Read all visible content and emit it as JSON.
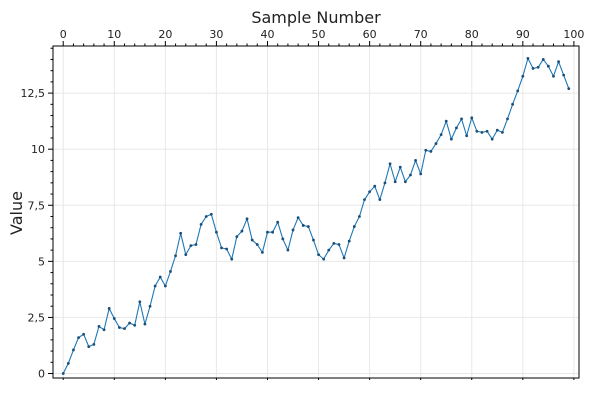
{
  "chart_data": {
    "type": "line",
    "xlabel": "Sample Number",
    "ylabel": "Value",
    "xlim": [
      -2,
      101
    ],
    "ylim": [
      -0.2,
      14.6
    ],
    "x_ticks": [
      0,
      10,
      20,
      30,
      40,
      50,
      60,
      70,
      80,
      90,
      100
    ],
    "x_tick_labels": [
      "0",
      "10",
      "20",
      "30",
      "40",
      "50",
      "60",
      "70",
      "80",
      "90",
      "100"
    ],
    "y_ticks": [
      0,
      2.5,
      5,
      7.5,
      10,
      12.5
    ],
    "y_tick_labels": [
      "0",
      "2,5",
      "5",
      "7,5",
      "10",
      "12,5"
    ],
    "x_axis_position": "top",
    "grid": true,
    "line_color": "#1f77b4",
    "series": [
      {
        "name": "",
        "x": [
          0,
          1,
          2,
          3,
          4,
          5,
          6,
          7,
          8,
          9,
          10,
          11,
          12,
          13,
          14,
          15,
          16,
          17,
          18,
          19,
          20,
          21,
          22,
          23,
          24,
          25,
          26,
          27,
          28,
          29,
          30,
          31,
          32,
          33,
          34,
          35,
          36,
          37,
          38,
          39,
          40,
          41,
          42,
          43,
          44,
          45,
          46,
          47,
          48,
          49,
          50,
          51,
          52,
          53,
          54,
          55,
          56,
          57,
          58,
          59,
          60,
          61,
          62,
          63,
          64,
          65,
          66,
          67,
          68,
          69,
          70,
          71,
          72,
          73,
          74,
          75,
          76,
          77,
          78,
          79,
          80,
          81,
          82,
          83,
          84,
          85,
          86,
          87,
          88,
          89,
          90,
          91,
          92,
          93,
          94,
          95,
          96,
          97,
          98,
          99
        ],
        "values": [
          0.0,
          0.45,
          1.05,
          1.6,
          1.75,
          1.2,
          1.3,
          2.1,
          1.95,
          2.9,
          2.45,
          2.05,
          2.0,
          2.25,
          2.15,
          3.2,
          2.2,
          3.0,
          3.9,
          4.3,
          3.9,
          4.55,
          5.25,
          6.25,
          5.3,
          5.7,
          5.75,
          6.65,
          7.0,
          7.1,
          6.3,
          5.6,
          5.55,
          5.1,
          6.1,
          6.35,
          6.9,
          5.95,
          5.75,
          5.4,
          6.3,
          6.3,
          6.75,
          6.0,
          5.5,
          6.4,
          6.95,
          6.6,
          6.55,
          5.95,
          5.3,
          5.1,
          5.5,
          5.8,
          5.75,
          5.15,
          5.9,
          6.55,
          7.0,
          7.75,
          8.1,
          8.35,
          7.75,
          8.5,
          9.35,
          8.55,
          9.2,
          8.55,
          8.85,
          9.5,
          8.9,
          9.95,
          9.9,
          10.25,
          10.65,
          11.25,
          10.45,
          10.95,
          11.35,
          10.6,
          11.4,
          10.8,
          10.75,
          10.8,
          10.45,
          10.85,
          10.75,
          11.35,
          12.0,
          12.6,
          13.25,
          14.05,
          13.6,
          13.65,
          14.0,
          13.7,
          13.25,
          13.9,
          13.3,
          12.7
        ]
      }
    ]
  }
}
